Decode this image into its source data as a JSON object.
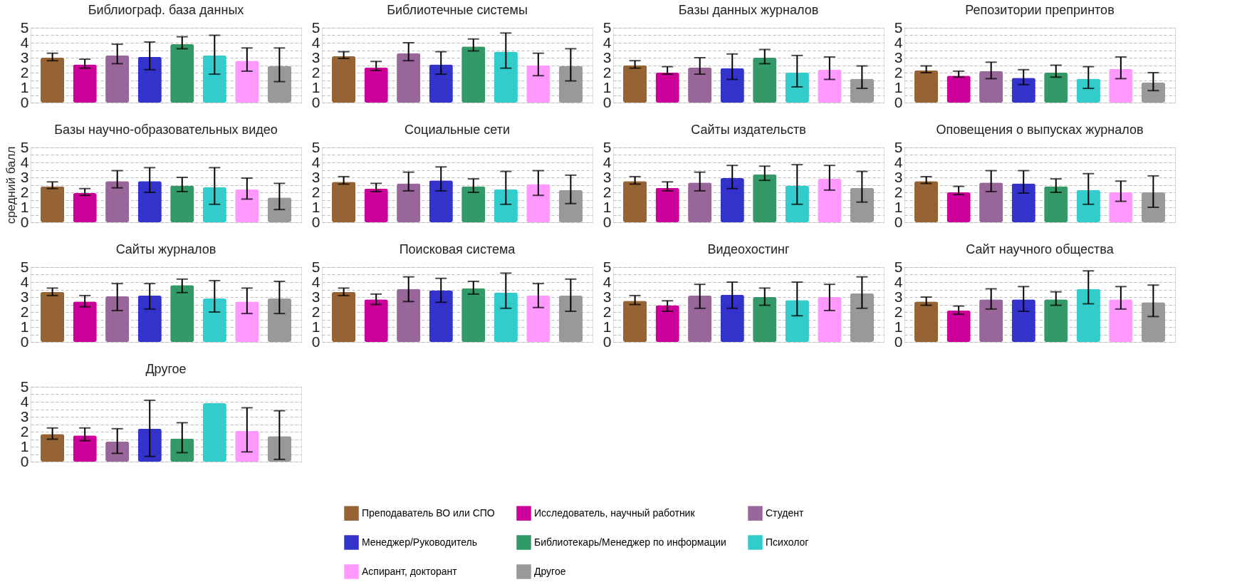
{
  "chart_data": [
    {
      "type": "bar",
      "title": "Библиограф. база данных",
      "categories": [
        null
      ],
      "ylim": [
        0,
        5
      ],
      "yticks": [
        0,
        {
          "value": 0.5,
          "label": null
        },
        1,
        {
          "value": 1.5,
          "label": null
        },
        2,
        {
          "value": 2.5,
          "label": null
        },
        3,
        {
          "value": 3.5,
          "label": null
        },
        4,
        {
          "value": 4.5,
          "label": null
        },
        5
      ],
      "grid": "y",
      "tick_labels": "y",
      "series": [
        {
          "color": "#966334",
          "values": [
            3.0
          ],
          "errors": [
            [
              2.8,
              3.3
            ]
          ]
        },
        {
          "color": "#cc0099",
          "values": [
            2.55
          ],
          "errors": [
            [
              2.3,
              2.9
            ]
          ]
        },
        {
          "color": "#996699",
          "values": [
            3.15
          ],
          "errors": [
            [
              2.6,
              3.9
            ]
          ]
        },
        {
          "color": "#3333cc",
          "values": [
            3.05
          ],
          "errors": [
            [
              2.2,
              4.05
            ]
          ]
        },
        {
          "color": "#339966",
          "values": [
            3.9
          ],
          "errors": [
            [
              3.6,
              4.4
            ]
          ]
        },
        {
          "color": "#33cccc",
          "values": [
            3.15
          ],
          "errors": [
            [
              1.9,
              4.5
            ]
          ]
        },
        {
          "color": "#ff99ff",
          "values": [
            2.8
          ],
          "errors": [
            [
              2.1,
              3.65
            ]
          ]
        },
        {
          "color": "#999999",
          "values": [
            2.45
          ],
          "errors": [
            [
              1.4,
              3.65
            ]
          ]
        }
      ]
    },
    {
      "type": "bar",
      "title": "Библиотечные системы",
      "categories": [
        null
      ],
      "ylim": [
        0,
        5
      ],
      "yticks": [
        0,
        {
          "value": 0.5,
          "label": null
        },
        1,
        {
          "value": 1.5,
          "label": null
        },
        2,
        {
          "value": 2.5,
          "label": null
        },
        3,
        {
          "value": 3.5,
          "label": null
        },
        4,
        {
          "value": 4.5,
          "label": null
        },
        5
      ],
      "grid": "y",
      "tick_labels": "y",
      "series": [
        {
          "color": "#966334",
          "values": [
            3.1
          ],
          "errors": [
            [
              2.95,
              3.4
            ]
          ]
        },
        {
          "color": "#cc0099",
          "values": [
            2.35
          ],
          "errors": [
            [
              2.15,
              2.75
            ]
          ]
        },
        {
          "color": "#996699",
          "values": [
            3.3
          ],
          "errors": [
            [
              2.8,
              4.0
            ]
          ]
        },
        {
          "color": "#3333cc",
          "values": [
            2.55
          ],
          "errors": [
            [
              1.9,
              3.4
            ]
          ]
        },
        {
          "color": "#339966",
          "values": [
            3.75
          ],
          "errors": [
            [
              3.45,
              4.25
            ]
          ]
        },
        {
          "color": "#33cccc",
          "values": [
            3.4
          ],
          "errors": [
            [
              2.3,
              4.65
            ]
          ]
        },
        {
          "color": "#ff99ff",
          "values": [
            2.5
          ],
          "errors": [
            [
              1.8,
              3.3
            ]
          ]
        },
        {
          "color": "#999999",
          "values": [
            2.45
          ],
          "errors": [
            [
              1.45,
              3.6
            ]
          ]
        }
      ]
    },
    {
      "type": "bar",
      "title": "Базы данных журналов",
      "categories": [
        null
      ],
      "ylim": [
        0,
        5
      ],
      "yticks": [
        0,
        {
          "value": 0.5,
          "label": null
        },
        1,
        {
          "value": 1.5,
          "label": null
        },
        2,
        {
          "value": 2.5,
          "label": null
        },
        3,
        {
          "value": 3.5,
          "label": null
        },
        4,
        {
          "value": 4.5,
          "label": null
        },
        5
      ],
      "grid": "y",
      "tick_labels": "y",
      "series": [
        {
          "color": "#966334",
          "values": [
            2.5
          ],
          "errors": [
            [
              2.3,
              2.8
            ]
          ]
        },
        {
          "color": "#cc0099",
          "values": [
            2.0
          ],
          "errors": [
            [
              1.9,
              2.4
            ]
          ]
        },
        {
          "color": "#996699",
          "values": [
            2.35
          ],
          "errors": [
            [
              1.9,
              3.0
            ]
          ]
        },
        {
          "color": "#3333cc",
          "values": [
            2.3
          ],
          "errors": [
            [
              1.55,
              3.25
            ]
          ]
        },
        {
          "color": "#339966",
          "values": [
            3.0
          ],
          "errors": [
            [
              2.6,
              3.55
            ]
          ]
        },
        {
          "color": "#33cccc",
          "values": [
            2.0
          ],
          "errors": [
            [
              1.05,
              3.15
            ]
          ]
        },
        {
          "color": "#ff99ff",
          "values": [
            2.2
          ],
          "errors": [
            [
              1.55,
              3.05
            ]
          ]
        },
        {
          "color": "#999999",
          "values": [
            1.6
          ],
          "errors": [
            [
              0.95,
              2.45
            ]
          ]
        }
      ]
    },
    {
      "type": "bar",
      "title": "Репозитории препринтов",
      "categories": [
        null
      ],
      "ylim": [
        0,
        5
      ],
      "yticks": [
        0,
        {
          "value": 0.5,
          "label": null
        },
        1,
        {
          "value": 1.5,
          "label": null
        },
        2,
        {
          "value": 2.5,
          "label": null
        },
        3,
        {
          "value": 3.5,
          "label": null
        },
        4,
        {
          "value": 4.5,
          "label": null
        },
        5
      ],
      "grid": "y",
      "tick_labels": "y",
      "series": [
        {
          "color": "#966334",
          "values": [
            2.15
          ],
          "errors": [
            [
              2.0,
              2.45
            ]
          ]
        },
        {
          "color": "#cc0099",
          "values": [
            1.8
          ],
          "errors": [
            [
              1.7,
              2.1
            ]
          ]
        },
        {
          "color": "#996699",
          "values": [
            2.1
          ],
          "errors": [
            [
              1.6,
              2.7
            ]
          ]
        },
        {
          "color": "#3333cc",
          "values": [
            1.65
          ],
          "errors": [
            [
              1.2,
              2.2
            ]
          ]
        },
        {
          "color": "#339966",
          "values": [
            2.0
          ],
          "errors": [
            [
              1.7,
              2.5
            ]
          ]
        },
        {
          "color": "#33cccc",
          "values": [
            1.6
          ],
          "errors": [
            [
              0.95,
              2.4
            ]
          ]
        },
        {
          "color": "#ff99ff",
          "values": [
            2.25
          ],
          "errors": [
            [
              1.6,
              3.05
            ]
          ]
        },
        {
          "color": "#999999",
          "values": [
            1.35
          ],
          "errors": [
            [
              0.8,
              2.0
            ]
          ]
        }
      ]
    },
    {
      "type": "bar",
      "title": "Базы научно-образовательных видео",
      "ylabel": "средний балл",
      "categories": [
        null
      ],
      "ylim": [
        0,
        5
      ],
      "yticks": [
        0,
        {
          "value": 0.5,
          "label": null
        },
        1,
        {
          "value": 1.5,
          "label": null
        },
        2,
        {
          "value": 2.5,
          "label": null
        },
        3,
        {
          "value": 3.5,
          "label": null
        },
        4,
        {
          "value": 4.5,
          "label": null
        },
        5
      ],
      "grid": "y",
      "tick_labels": "y",
      "series": [
        {
          "color": "#966334",
          "values": [
            2.4
          ],
          "errors": [
            [
              2.25,
              2.7
            ]
          ]
        },
        {
          "color": "#cc0099",
          "values": [
            1.95
          ],
          "errors": [
            [
              1.8,
              2.25
            ]
          ]
        },
        {
          "color": "#996699",
          "values": [
            2.75
          ],
          "errors": [
            [
              2.3,
              3.45
            ]
          ]
        },
        {
          "color": "#3333cc",
          "values": [
            2.75
          ],
          "errors": [
            [
              2.0,
              3.65
            ]
          ]
        },
        {
          "color": "#339966",
          "values": [
            2.45
          ],
          "errors": [
            [
              2.05,
              3.0
            ]
          ]
        },
        {
          "color": "#33cccc",
          "values": [
            2.35
          ],
          "errors": [
            [
              1.2,
              3.65
            ]
          ]
        },
        {
          "color": "#ff99ff",
          "values": [
            2.2
          ],
          "errors": [
            [
              1.55,
              2.95
            ]
          ]
        },
        {
          "color": "#999999",
          "values": [
            1.65
          ],
          "errors": [
            [
              0.85,
              2.6
            ]
          ]
        }
      ]
    },
    {
      "type": "bar",
      "title": "Социальные сети",
      "categories": [
        null
      ],
      "ylim": [
        0,
        5
      ],
      "yticks": [
        0,
        {
          "value": 0.5,
          "label": null
        },
        1,
        {
          "value": 1.5,
          "label": null
        },
        2,
        {
          "value": 2.5,
          "label": null
        },
        3,
        {
          "value": 3.5,
          "label": null
        },
        4,
        {
          "value": 4.5,
          "label": null
        },
        5
      ],
      "grid": "y",
      "tick_labels": "y",
      "series": [
        {
          "color": "#966334",
          "values": [
            2.7
          ],
          "errors": [
            [
              2.55,
              3.05
            ]
          ]
        },
        {
          "color": "#cc0099",
          "values": [
            2.25
          ],
          "errors": [
            [
              2.05,
              2.6
            ]
          ]
        },
        {
          "color": "#996699",
          "values": [
            2.6
          ],
          "errors": [
            [
              2.1,
              3.35
            ]
          ]
        },
        {
          "color": "#3333cc",
          "values": [
            2.8
          ],
          "errors": [
            [
              2.1,
              3.7
            ]
          ]
        },
        {
          "color": "#339966",
          "values": [
            2.4
          ],
          "errors": [
            [
              2.0,
              2.9
            ]
          ]
        },
        {
          "color": "#33cccc",
          "values": [
            2.2
          ],
          "errors": [
            [
              1.2,
              3.4
            ]
          ]
        },
        {
          "color": "#ff99ff",
          "values": [
            2.55
          ],
          "errors": [
            [
              1.8,
              3.45
            ]
          ]
        },
        {
          "color": "#999999",
          "values": [
            2.15
          ],
          "errors": [
            [
              1.25,
              3.15
            ]
          ]
        }
      ]
    },
    {
      "type": "bar",
      "title": "Сайты издательств",
      "categories": [
        null
      ],
      "ylim": [
        0,
        5
      ],
      "yticks": [
        0,
        {
          "value": 0.5,
          "label": null
        },
        1,
        {
          "value": 1.5,
          "label": null
        },
        2,
        {
          "value": 2.5,
          "label": null
        },
        3,
        {
          "value": 3.5,
          "label": null
        },
        4,
        {
          "value": 4.5,
          "label": null
        },
        5
      ],
      "grid": "y",
      "tick_labels": "y",
      "series": [
        {
          "color": "#966334",
          "values": [
            2.75
          ],
          "errors": [
            [
              2.55,
              3.05
            ]
          ]
        },
        {
          "color": "#cc0099",
          "values": [
            2.3
          ],
          "errors": [
            [
              2.1,
              2.7
            ]
          ]
        },
        {
          "color": "#996699",
          "values": [
            2.65
          ],
          "errors": [
            [
              2.1,
              3.35
            ]
          ]
        },
        {
          "color": "#3333cc",
          "values": [
            2.95
          ],
          "errors": [
            [
              2.25,
              3.8
            ]
          ]
        },
        {
          "color": "#339966",
          "values": [
            3.2
          ],
          "errors": [
            [
              2.8,
              3.75
            ]
          ]
        },
        {
          "color": "#33cccc",
          "values": [
            2.45
          ],
          "errors": [
            [
              1.2,
              3.85
            ]
          ]
        },
        {
          "color": "#ff99ff",
          "values": [
            2.9
          ],
          "errors": [
            [
              2.15,
              3.8
            ]
          ]
        },
        {
          "color": "#999999",
          "values": [
            2.3
          ],
          "errors": [
            [
              1.35,
              3.4
            ]
          ]
        }
      ]
    },
    {
      "type": "bar",
      "title": "Оповещения о выпусках журналов",
      "categories": [
        null
      ],
      "ylim": [
        0,
        5
      ],
      "yticks": [
        0,
        {
          "value": 0.5,
          "label": null
        },
        1,
        {
          "value": 1.5,
          "label": null
        },
        2,
        {
          "value": 2.5,
          "label": null
        },
        3,
        {
          "value": 3.5,
          "label": null
        },
        4,
        {
          "value": 4.5,
          "label": null
        },
        5
      ],
      "grid": "y",
      "tick_labels": "y",
      "series": [
        {
          "color": "#966334",
          "values": [
            2.75
          ],
          "errors": [
            [
              2.6,
              3.05
            ]
          ]
        },
        {
          "color": "#cc0099",
          "values": [
            2.0
          ],
          "errors": [
            [
              1.85,
              2.4
            ]
          ]
        },
        {
          "color": "#996699",
          "values": [
            2.65
          ],
          "errors": [
            [
              2.05,
              3.45
            ]
          ]
        },
        {
          "color": "#3333cc",
          "values": [
            2.6
          ],
          "errors": [
            [
              1.95,
              3.45
            ]
          ]
        },
        {
          "color": "#339966",
          "values": [
            2.4
          ],
          "errors": [
            [
              2.0,
              2.9
            ]
          ]
        },
        {
          "color": "#33cccc",
          "values": [
            2.15
          ],
          "errors": [
            [
              1.2,
              3.25
            ]
          ]
        },
        {
          "color": "#ff99ff",
          "values": [
            2.0
          ],
          "errors": [
            [
              1.4,
              2.75
            ]
          ]
        },
        {
          "color": "#999999",
          "values": [
            2.0
          ],
          "errors": [
            [
              1.0,
              3.1
            ]
          ]
        }
      ]
    },
    {
      "type": "bar",
      "title": "Сайты журналов",
      "categories": [
        null
      ],
      "ylim": [
        0,
        5
      ],
      "yticks": [
        0,
        {
          "value": 0.5,
          "label": null
        },
        1,
        {
          "value": 1.5,
          "label": null
        },
        2,
        {
          "value": 2.5,
          "label": null
        },
        3,
        {
          "value": 3.5,
          "label": null
        },
        4,
        {
          "value": 4.5,
          "label": null
        },
        5
      ],
      "grid": "y",
      "tick_labels": "y",
      "series": [
        {
          "color": "#966334",
          "values": [
            3.35
          ],
          "errors": [
            [
              3.1,
              3.6
            ]
          ]
        },
        {
          "color": "#cc0099",
          "values": [
            2.7
          ],
          "errors": [
            [
              2.35,
              3.1
            ]
          ]
        },
        {
          "color": "#996699",
          "values": [
            3.05
          ],
          "errors": [
            [
              2.1,
              3.9
            ]
          ]
        },
        {
          "color": "#3333cc",
          "values": [
            3.1
          ],
          "errors": [
            [
              2.2,
              3.9
            ]
          ]
        },
        {
          "color": "#339966",
          "values": [
            3.8
          ],
          "errors": [
            [
              3.3,
              4.2
            ]
          ]
        },
        {
          "color": "#33cccc",
          "values": [
            2.9
          ],
          "errors": [
            [
              2.0,
              4.1
            ]
          ]
        },
        {
          "color": "#ff99ff",
          "values": [
            2.7
          ],
          "errors": [
            [
              1.9,
              3.6
            ]
          ]
        },
        {
          "color": "#999999",
          "values": [
            2.9
          ],
          "errors": [
            [
              1.9,
              4.05
            ]
          ]
        }
      ]
    },
    {
      "type": "bar",
      "title": "Поисковая система",
      "categories": [
        null
      ],
      "ylim": [
        0,
        5
      ],
      "yticks": [
        0,
        {
          "value": 0.5,
          "label": null
        },
        1,
        {
          "value": 1.5,
          "label": null
        },
        2,
        {
          "value": 2.5,
          "label": null
        },
        3,
        {
          "value": 3.5,
          "label": null
        },
        4,
        {
          "value": 4.5,
          "label": null
        },
        5
      ],
      "grid": "y",
      "tick_labels": "y",
      "series": [
        {
          "color": "#966334",
          "values": [
            3.35
          ],
          "errors": [
            [
              3.1,
              3.6
            ]
          ]
        },
        {
          "color": "#cc0099",
          "values": [
            2.85
          ],
          "errors": [
            [
              2.5,
              3.2
            ]
          ]
        },
        {
          "color": "#996699",
          "values": [
            3.55
          ],
          "errors": [
            [
              2.7,
              4.35
            ]
          ]
        },
        {
          "color": "#3333cc",
          "values": [
            3.45
          ],
          "errors": [
            [
              2.65,
              4.25
            ]
          ]
        },
        {
          "color": "#339966",
          "values": [
            3.6
          ],
          "errors": [
            [
              3.2,
              4.05
            ]
          ]
        },
        {
          "color": "#33cccc",
          "values": [
            3.3
          ],
          "errors": [
            [
              2.25,
              4.6
            ]
          ]
        },
        {
          "color": "#ff99ff",
          "values": [
            3.1
          ],
          "errors": [
            [
              2.3,
              3.9
            ]
          ]
        },
        {
          "color": "#999999",
          "values": [
            3.1
          ],
          "errors": [
            [
              2.05,
              4.2
            ]
          ]
        }
      ]
    },
    {
      "type": "bar",
      "title": "Видеохостинг",
      "categories": [
        null
      ],
      "ylim": [
        0,
        5
      ],
      "yticks": [
        0,
        {
          "value": 0.5,
          "label": null
        },
        1,
        {
          "value": 1.5,
          "label": null
        },
        2,
        {
          "value": 2.5,
          "label": null
        },
        3,
        {
          "value": 3.5,
          "label": null
        },
        4,
        {
          "value": 4.5,
          "label": null
        },
        5
      ],
      "grid": "y",
      "tick_labels": "y",
      "series": [
        {
          "color": "#966334",
          "values": [
            2.75
          ],
          "errors": [
            [
              2.5,
              3.1
            ]
          ]
        },
        {
          "color": "#cc0099",
          "values": [
            2.45
          ],
          "errors": [
            [
              2.05,
              2.75
            ]
          ]
        },
        {
          "color": "#996699",
          "values": [
            3.1
          ],
          "errors": [
            [
              2.25,
              3.85
            ]
          ]
        },
        {
          "color": "#3333cc",
          "values": [
            3.15
          ],
          "errors": [
            [
              2.25,
              4.0
            ]
          ]
        },
        {
          "color": "#339966",
          "values": [
            3.0
          ],
          "errors": [
            [
              2.45,
              3.6
            ]
          ]
        },
        {
          "color": "#33cccc",
          "values": [
            2.8
          ],
          "errors": [
            [
              1.75,
              4.0
            ]
          ]
        },
        {
          "color": "#ff99ff",
          "values": [
            3.0
          ],
          "errors": [
            [
              2.1,
              3.85
            ]
          ]
        },
        {
          "color": "#999999",
          "values": [
            3.25
          ],
          "errors": [
            [
              2.25,
              4.35
            ]
          ]
        }
      ]
    },
    {
      "type": "bar",
      "title": "Сайт научного общества",
      "categories": [
        null
      ],
      "ylim": [
        0,
        5
      ],
      "yticks": [
        0,
        {
          "value": 0.5,
          "label": null
        },
        1,
        {
          "value": 1.5,
          "label": null
        },
        2,
        {
          "value": 2.5,
          "label": null
        },
        3,
        {
          "value": 3.5,
          "label": null
        },
        4,
        {
          "value": 4.5,
          "label": null
        },
        5
      ],
      "grid": "y",
      "tick_labels": "y",
      "series": [
        {
          "color": "#966334",
          "values": [
            2.7
          ],
          "errors": [
            [
              2.45,
              3.0
            ]
          ]
        },
        {
          "color": "#cc0099",
          "values": [
            2.1
          ],
          "errors": [
            [
              1.85,
              2.4
            ]
          ]
        },
        {
          "color": "#996699",
          "values": [
            2.85
          ],
          "errors": [
            [
              2.2,
              3.55
            ]
          ]
        },
        {
          "color": "#3333cc",
          "values": [
            2.85
          ],
          "errors": [
            [
              2.05,
              3.7
            ]
          ]
        },
        {
          "color": "#339966",
          "values": [
            2.85
          ],
          "errors": [
            [
              2.45,
              3.35
            ]
          ]
        },
        {
          "color": "#33cccc",
          "values": [
            3.55
          ],
          "errors": [
            [
              2.55,
              4.75
            ]
          ]
        },
        {
          "color": "#ff99ff",
          "values": [
            2.85
          ],
          "errors": [
            [
              2.2,
              3.7
            ]
          ]
        },
        {
          "color": "#999999",
          "values": [
            2.65
          ],
          "errors": [
            [
              1.7,
              3.8
            ]
          ]
        }
      ]
    },
    {
      "type": "bar",
      "title": "Другое",
      "categories": [
        null
      ],
      "ylim": [
        0,
        5
      ],
      "yticks": [
        0,
        {
          "value": 0.5,
          "label": null
        },
        1,
        {
          "value": 1.5,
          "label": null
        },
        2,
        {
          "value": 2.5,
          "label": null
        },
        3,
        {
          "value": 3.5,
          "label": null
        },
        4,
        {
          "value": 4.5,
          "label": null
        },
        5
      ],
      "grid": "y",
      "tick_labels": "y",
      "legend": "bottom",
      "series": [
        {
          "name": "Преподаватель ВО или СПО",
          "color": "#966334",
          "values": [
            1.85
          ],
          "errors": [
            [
              1.5,
              2.25
            ]
          ]
        },
        {
          "name": "Исследователь, научный работник",
          "color": "#cc0099",
          "values": [
            1.75
          ],
          "errors": [
            [
              1.4,
              2.25
            ]
          ]
        },
        {
          "name": "Студент",
          "color": "#996699",
          "values": [
            1.35
          ],
          "errors": [
            [
              0.55,
              2.2
            ]
          ]
        },
        {
          "name": "Менеджер/Руководитель",
          "color": "#3333cc",
          "values": [
            2.2
          ],
          "errors": [
            [
              0.35,
              4.1
            ]
          ]
        },
        {
          "name": "Библиотекарь/Менеджер по информации",
          "color": "#339966",
          "values": [
            1.55
          ],
          "errors": [
            [
              0.6,
              2.6
            ]
          ]
        },
        {
          "name": "Психолог",
          "color": "#33cccc",
          "values": [
            3.9
          ],
          "errors": [
            null
          ]
        },
        {
          "name": "Аспирант, докторант",
          "color": "#ff99ff",
          "values": [
            2.05
          ],
          "errors": [
            [
              0.65,
              3.6
            ]
          ]
        },
        {
          "name": "Другое",
          "color": "#999999",
          "values": [
            1.7
          ],
          "errors": [
            [
              0.15,
              3.4
            ]
          ]
        }
      ]
    }
  ]
}
